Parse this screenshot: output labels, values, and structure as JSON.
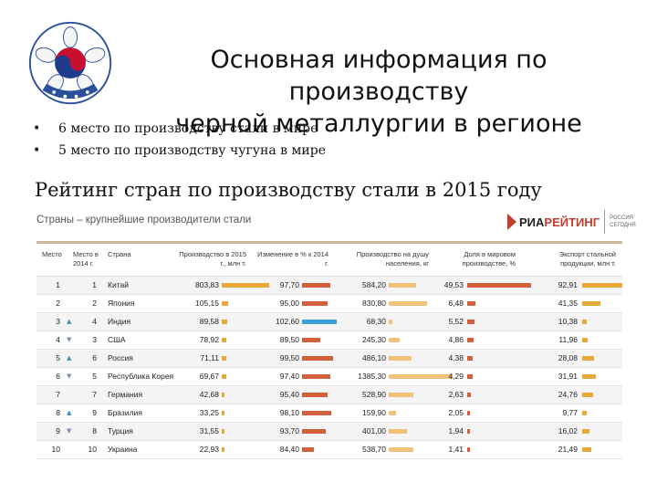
{
  "slide": {
    "title_lines": [
      "Основная информация по",
      "производству",
      "черной металлургии в регионе"
    ],
    "bullets": [
      "6 место по производству стали в мире",
      "5 место по производству чугуна в мире"
    ],
    "emblem_text": "대한민국"
  },
  "chart_data": {
    "type": "table",
    "title": "Рейтинг стран по производству стали в 2015 году",
    "subtitle": "Страны – крупнейшие производители стали",
    "source": {
      "ria": "РИА",
      "rating": "РЕЙТИНГ",
      "side": "РОССИЯ СЕГОДНЯ"
    },
    "headers": {
      "rank": "Место",
      "rank2014": "Место в 2014 г.",
      "country": "Страна",
      "production": "Производство в 2015 г., млн т.",
      "change": "Изменение в % к 2014 г.",
      "per_capita": "Производство на душу населения, кг",
      "world_share": "Доля в мировом производстве, %",
      "export": "Экспорт стальной продукции, млн т."
    },
    "colors": {
      "orange": "#e8a93a",
      "red": "#d2603d",
      "blue": "#3b9fd6",
      "light": "#f0c27a"
    },
    "rows": [
      {
        "rank": "1",
        "rank2014": "1",
        "move": "",
        "country": "Китай",
        "production": "803,83",
        "change": "97,70",
        "per_capita": "584,20",
        "world_share": "49,53",
        "export": "92,91"
      },
      {
        "rank": "2",
        "rank2014": "2",
        "move": "",
        "country": "Япония",
        "production": "105,15",
        "change": "95,00",
        "per_capita": "830,80",
        "world_share": "6,48",
        "export": "41,35"
      },
      {
        "rank": "3",
        "rank2014": "4",
        "move": "up",
        "country": "Индия",
        "production": "89,58",
        "change": "102,60",
        "per_capita": "68,30",
        "world_share": "5,52",
        "export": "10,38"
      },
      {
        "rank": "4",
        "rank2014": "3",
        "move": "down",
        "country": "США",
        "production": "78,92",
        "change": "89,50",
        "per_capita": "245,30",
        "world_share": "4,86",
        "export": "11,96"
      },
      {
        "rank": "5",
        "rank2014": "6",
        "move": "up",
        "country": "Россия",
        "production": "71,11",
        "change": "99,50",
        "per_capita": "486,10",
        "world_share": "4,38",
        "export": "28,08"
      },
      {
        "rank": "6",
        "rank2014": "5",
        "move": "down",
        "country": "Республика Корея",
        "production": "69,67",
        "change": "97,40",
        "per_capita": "1385,30",
        "world_share": "4,29",
        "export": "31,91"
      },
      {
        "rank": "7",
        "rank2014": "7",
        "move": "",
        "country": "Германия",
        "production": "42,68",
        "change": "95,40",
        "per_capita": "528,90",
        "world_share": "2,63",
        "export": "24,76"
      },
      {
        "rank": "8",
        "rank2014": "9",
        "move": "up",
        "country": "Бразилия",
        "production": "33,25",
        "change": "98,10",
        "per_capita": "159,90",
        "world_share": "2,05",
        "export": "9,77"
      },
      {
        "rank": "9",
        "rank2014": "8",
        "move": "down",
        "country": "Турция",
        "production": "31,55",
        "change": "93,70",
        "per_capita": "401,00",
        "world_share": "1,94",
        "export": "16,02"
      },
      {
        "rank": "10",
        "rank2014": "10",
        "move": "",
        "country": "Украина",
        "production": "22,93",
        "change": "84,40",
        "per_capita": "538,70",
        "world_share": "1,41",
        "export": "21,49"
      }
    ]
  }
}
